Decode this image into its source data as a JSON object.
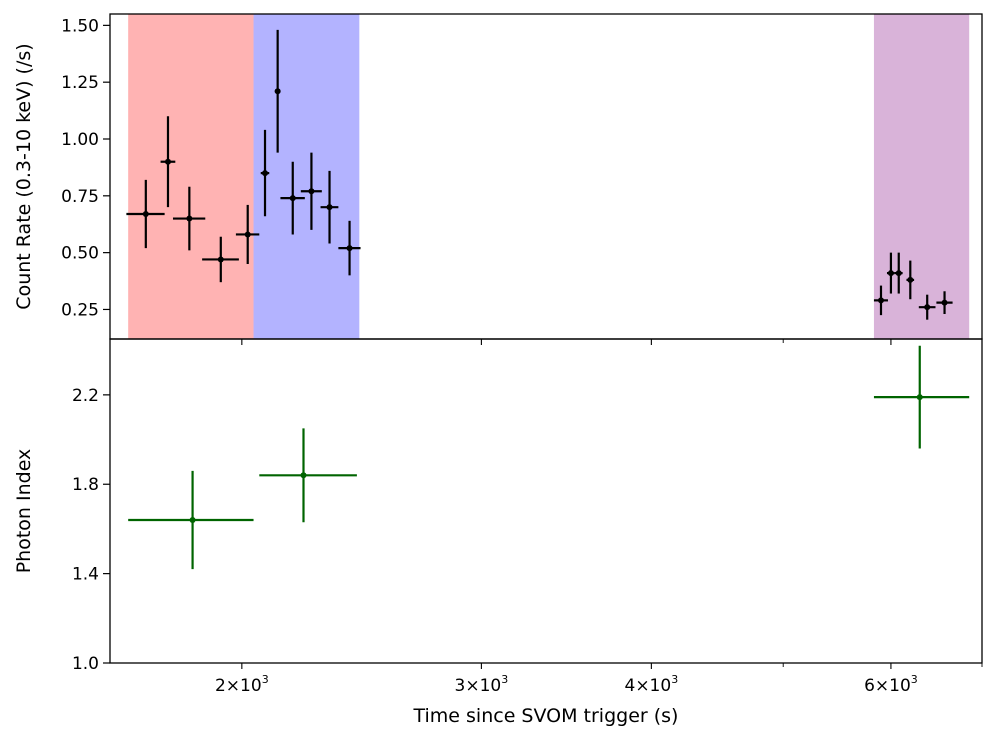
{
  "chart_data": [
    {
      "type": "scatter",
      "panel": "top",
      "ylabel": "Count Rate (0.3-10 keV) (/s)",
      "xscale": "log",
      "xlim": [
        1600,
        7000
      ],
      "ylim": [
        0.12,
        1.55
      ],
      "yticks": [
        {
          "value": 0.25,
          "label": "0.25"
        },
        {
          "value": 0.5,
          "label": "0.50"
        },
        {
          "value": 0.75,
          "label": "0.75"
        },
        {
          "value": 1.0,
          "label": "1.00"
        },
        {
          "value": 1.25,
          "label": "1.25"
        },
        {
          "value": 1.5,
          "label": "1.50"
        }
      ],
      "shaded_intervals": [
        {
          "x0": 1650,
          "x1": 2040,
          "color": "#ff8080"
        },
        {
          "x0": 2040,
          "x1": 2440,
          "color": "#8080ff"
        },
        {
          "x0": 5830,
          "x1": 6850,
          "color": "#bf80bf"
        }
      ],
      "series": [
        {
          "name": "count rate",
          "color": "#000000",
          "points": [
            {
              "x": 1700,
              "xerr": 55,
              "y": 0.67,
              "yerr": 0.15
            },
            {
              "x": 1765,
              "xerr": 22,
              "y": 0.9,
              "yerr": 0.2
            },
            {
              "x": 1830,
              "xerr": 50,
              "y": 0.65,
              "yerr": 0.14
            },
            {
              "x": 1930,
              "xerr": 60,
              "y": 0.47,
              "yerr": 0.1
            },
            {
              "x": 2020,
              "xerr": 40,
              "y": 0.58,
              "yerr": 0.13
            },
            {
              "x": 2080,
              "xerr": 15,
              "y": 0.85,
              "yerr": 0.19
            },
            {
              "x": 2125,
              "xerr": 10,
              "y": 1.21,
              "yerr": 0.27
            },
            {
              "x": 2180,
              "xerr": 45,
              "y": 0.74,
              "yerr": 0.16
            },
            {
              "x": 2250,
              "xerr": 40,
              "y": 0.77,
              "yerr": 0.17
            },
            {
              "x": 2320,
              "xerr": 35,
              "y": 0.7,
              "yerr": 0.16
            },
            {
              "x": 2400,
              "xerr": 45,
              "y": 0.52,
              "yerr": 0.12
            },
            {
              "x": 5900,
              "xerr": 70,
              "y": 0.29,
              "yerr": 0.065
            },
            {
              "x": 6000,
              "xerr": 40,
              "y": 0.41,
              "yerr": 0.09
            },
            {
              "x": 6080,
              "xerr": 40,
              "y": 0.41,
              "yerr": 0.09
            },
            {
              "x": 6200,
              "xerr": 40,
              "y": 0.38,
              "yerr": 0.085
            },
            {
              "x": 6380,
              "xerr": 90,
              "y": 0.26,
              "yerr": 0.055
            },
            {
              "x": 6570,
              "xerr": 90,
              "y": 0.28,
              "yerr": 0.05
            }
          ]
        }
      ]
    },
    {
      "type": "scatter",
      "panel": "bottom",
      "xlabel": "Time since SVOM trigger (s)",
      "ylabel": "Photon Index",
      "xscale": "log",
      "xlim": [
        1600,
        7000
      ],
      "ylim": [
        1.0,
        2.45
      ],
      "yticks": [
        {
          "value": 1.0,
          "label": "1.0"
        },
        {
          "value": 1.4,
          "label": "1.4"
        },
        {
          "value": 1.8,
          "label": "1.8"
        },
        {
          "value": 2.2,
          "label": "2.2"
        }
      ],
      "xticks": [
        {
          "value": 2000,
          "base": "2",
          "exp": "3"
        },
        {
          "value": 3000,
          "base": "3",
          "exp": "3"
        },
        {
          "value": 4000,
          "base": "4",
          "exp": "3"
        },
        {
          "value": 6000,
          "base": "6",
          "exp": "3"
        }
      ],
      "xtick_sep": "×10",
      "minor_xticks": [
        5000,
        7000
      ],
      "series": [
        {
          "name": "photon index",
          "color": "#006400",
          "points": [
            {
              "x_lo": 1650,
              "x_hi": 2040,
              "x": 1840,
              "y": 1.64,
              "yerr_lo": 0.22,
              "yerr_hi": 0.22
            },
            {
              "x_lo": 2060,
              "x_hi": 2430,
              "x": 2220,
              "y": 1.84,
              "yerr_lo": 0.21,
              "yerr_hi": 0.21
            },
            {
              "x_lo": 5830,
              "x_hi": 6850,
              "x": 6300,
              "y": 2.19,
              "yerr_lo": 0.23,
              "yerr_hi": 0.23
            }
          ]
        }
      ]
    }
  ]
}
